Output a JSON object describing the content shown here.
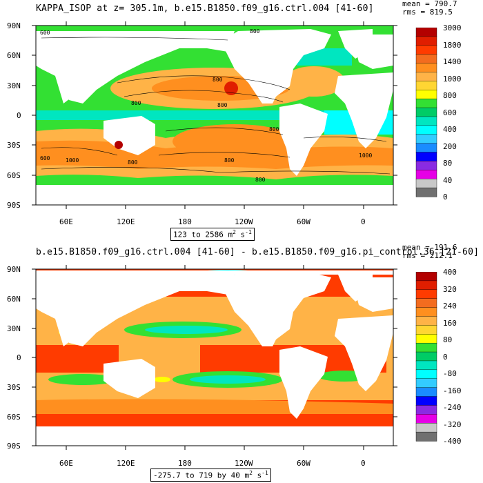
{
  "panels": [
    {
      "title": "KAPPA_ISOP at z= 305.1m, b.e15.B1850.f09_g16.ctrl.004 [41-60]",
      "mean": "mean = 790.7",
      "rms": "rms = 819.5",
      "range_text": "123 to 2586 m",
      "range_unit_exp": "2",
      "range_unit_tail": " s",
      "range_unit_exp2": "-1",
      "colorbar_labels": [
        "3000",
        "1800",
        "1400",
        "1000",
        "800",
        "600",
        "400",
        "200",
        "80",
        "40",
        "0"
      ],
      "colorbar_colors": [
        "#b30000",
        "#e01e00",
        "#ff3b00",
        "#f36c1f",
        "#ff8f1f",
        "#ffb347",
        "#ffd633",
        "#ffff00",
        "#33e033",
        "#00cc66",
        "#00e6c0",
        "#00ffff",
        "#33ccff",
        "#1a8cff",
        "#0000ff",
        "#8a2be2",
        "#e600e6",
        "#c8c8c8",
        "#707070"
      ]
    },
    {
      "title": "b.e15.B1850.f09_g16.ctrl.004 [41-60] - b.e15.B1850.f09_g16.pi_control.36 [21-60]",
      "mean": "mean = 191.6",
      "rms": "rms = 212.1",
      "range_text": "-275.7 to 719 by 40 m",
      "range_unit_exp": "2",
      "range_unit_tail": " s",
      "range_unit_exp2": "-1",
      "colorbar_labels": [
        "400",
        "320",
        "240",
        "160",
        "80",
        "0",
        "-80",
        "-160",
        "-240",
        "-320",
        "-400"
      ],
      "colorbar_colors": [
        "#b30000",
        "#e01e00",
        "#ff3b00",
        "#f36c1f",
        "#ff8f1f",
        "#ffb347",
        "#ffd633",
        "#ffff00",
        "#33e033",
        "#00cc66",
        "#00e6c0",
        "#00ffff",
        "#33ccff",
        "#1a8cff",
        "#0000ff",
        "#8a2be2",
        "#e600e6",
        "#c8c8c8",
        "#707070"
      ]
    }
  ],
  "lat_labels": [
    "90N",
    "60N",
    "30N",
    "0",
    "30S",
    "60S",
    "90S"
  ],
  "lon_labels": [
    "60E",
    "120E",
    "180",
    "120W",
    "60W",
    "0"
  ],
  "contour_labels_top": [
    "600",
    "800",
    "800",
    "800",
    "800",
    "800",
    "1000",
    "800",
    "600",
    "800",
    "1000",
    "800"
  ],
  "colors": {
    "land": "#ffffff",
    "ocean_base_top": "#33e033",
    "ocean_base_bottom": "#ff3b00"
  }
}
